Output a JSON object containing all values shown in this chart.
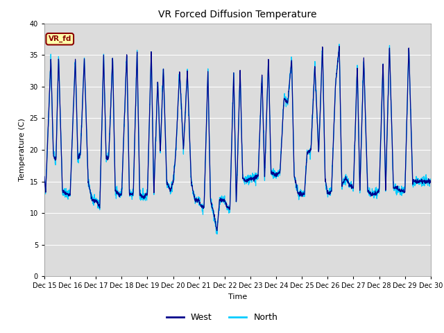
{
  "title": "VR Forced Diffusion Temperature",
  "xlabel": "Time",
  "ylabel": "Temperature (C)",
  "ylim": [
    0,
    40
  ],
  "yticks": [
    0,
    5,
    10,
    15,
    20,
    25,
    30,
    35,
    40
  ],
  "xtick_labels": [
    "Dec 15",
    "Dec 16",
    "Dec 17",
    "Dec 18",
    "Dec 19",
    "Dec 20",
    "Dec 21",
    "Dec 22",
    "Dec 23",
    "Dec 24",
    "Dec 25",
    "Dec 26",
    "Dec 27",
    "Dec 28",
    "Dec 29",
    "Dec 30"
  ],
  "west_color": "#00008B",
  "north_color": "#00CCFF",
  "bg_color": "#DCDCDC",
  "annotation_text": "VR_fd",
  "annotation_bg": "#FFFFAA",
  "annotation_border": "#8B0000",
  "legend_west": "West",
  "legend_north": "North",
  "title_fontsize": 10,
  "label_fontsize": 8,
  "tick_fontsize": 7
}
